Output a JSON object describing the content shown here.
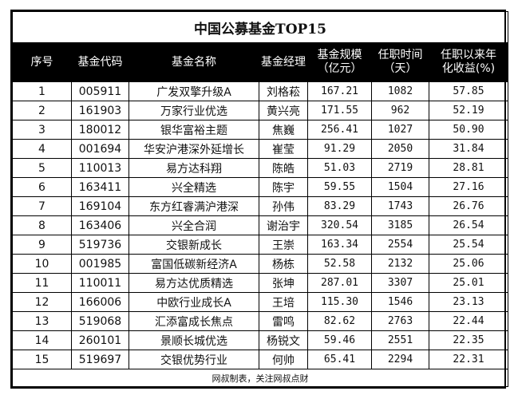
{
  "title": "中国公募基金TOP15",
  "headers": [
    "序号",
    "基金代码",
    "基金名称",
    "基金经理",
    "基金规模\n（亿元）",
    "任职时间\n（天）",
    "任职以来年\n化收益(%)"
  ],
  "rows": [
    [
      "1",
      "005911",
      "广发双擎升级A",
      "刘格菘",
      "167.21",
      "1082",
      "57.85"
    ],
    [
      "2",
      "161903",
      "万家行业优选",
      "黄兴亮",
      "171.55",
      "962",
      "52.19"
    ],
    [
      "3",
      "180012",
      "银华富裕主题",
      "焦巍",
      "256.41",
      "1027",
      "50.90"
    ],
    [
      "4",
      "001694",
      "华安沪港深外延增长",
      "崔莹",
      "91.29",
      "2050",
      "31.84"
    ],
    [
      "5",
      "110013",
      "易方达科翔",
      "陈皓",
      "51.03",
      "2719",
      "28.81"
    ],
    [
      "6",
      "163411",
      "兴全精选",
      "陈宇",
      "59.55",
      "1504",
      "27.16"
    ],
    [
      "7",
      "169104",
      "东方红睿满沪港深",
      "孙伟",
      "83.29",
      "1743",
      "26.76"
    ],
    [
      "8",
      "163406",
      "兴全合润",
      "谢治宇",
      "320.54",
      "3185",
      "26.54"
    ],
    [
      "9",
      "519736",
      "交银新成长",
      "王崇",
      "163.34",
      "2554",
      "25.54"
    ],
    [
      "10",
      "001985",
      "富国低碳新经济A",
      "杨栋",
      "52.58",
      "2132",
      "25.06"
    ],
    [
      "11",
      "110011",
      "易方达优质精选",
      "张坤",
      "287.01",
      "3307",
      "25.01"
    ],
    [
      "12",
      "166006",
      "中欧行业成长A",
      "王培",
      "115.30",
      "1546",
      "23.13"
    ],
    [
      "13",
      "519068",
      "汇添富成长焦点",
      "雷鸣",
      "82.62",
      "2763",
      "22.44"
    ],
    [
      "14",
      "260101",
      "景顺长城优选",
      "杨锐文",
      "59.46",
      "2551",
      "22.35"
    ],
    [
      "15",
      "519697",
      "交银优势行业",
      "何帅",
      "65.41",
      "2294",
      "22.31"
    ]
  ],
  "footer": "网叔制表，关注网叔点财"
}
